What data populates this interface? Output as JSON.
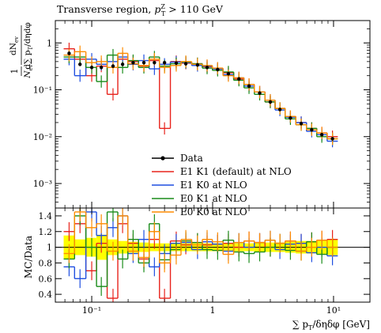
{
  "chart_data": [
    {
      "panel": "main",
      "type": "line",
      "title": "Transverse region, p_T^Z > 110 GeV",
      "title_parts": {
        "main": "Transverse region, ",
        "var": "p",
        "sub": "T",
        "sup": "Z",
        "rest": " > 110 GeV"
      },
      "ylabel": "1/N_ev dN_ev/d∑p_T/dηdφ",
      "ylabel_parts": {
        "one": "1",
        "nev_top": "dN",
        "nev_sub": "ev",
        "den_left": "N",
        "den_left_sub": "ev",
        "den_right": "d∑ p",
        "den_right_sub": "T",
        "den_tail": "/dηdφ"
      },
      "x_scale": "log",
      "y_scale": "log",
      "xlim": [
        0.05,
        20
      ],
      "ylim": [
        0.0003,
        3
      ],
      "y_tick_labels": [
        "10⁻³",
        "10⁻²",
        "10⁻¹",
        "1"
      ],
      "y_tick_values": [
        0.001,
        0.01,
        0.1,
        1
      ],
      "legend_position": "center",
      "legend": [
        {
          "label": "Data",
          "color": "#000000",
          "marker": "dot"
        },
        {
          "label": "E1 K1 (default) at NLO",
          "color": "#e8231c"
        },
        {
          "label": "E1 K0 at NLO",
          "color": "#1f4fe0"
        },
        {
          "label": "E0 K1 at NLO",
          "color": "#1a8c1a"
        },
        {
          "label": "E0 K0 at NLO",
          "color": "#ff8c00"
        }
      ],
      "series": [
        {
          "name": "Data",
          "color": "#000000",
          "x": [
            0.065,
            0.08,
            0.1,
            0.12,
            0.15,
            0.18,
            0.22,
            0.27,
            0.33,
            0.4,
            0.5,
            0.6,
            0.75,
            0.9,
            1.1,
            1.35,
            1.65,
            2.0,
            2.45,
            3.0,
            3.6,
            4.4,
            5.4,
            6.6,
            8.0,
            9.8
          ],
          "y": [
            0.6,
            0.35,
            0.3,
            0.3,
            0.32,
            0.35,
            0.38,
            0.38,
            0.38,
            0.38,
            0.37,
            0.36,
            0.34,
            0.3,
            0.27,
            0.22,
            0.17,
            0.12,
            0.085,
            0.055,
            0.038,
            0.025,
            0.019,
            0.014,
            0.011,
            0.009
          ]
        },
        {
          "name": "E1 K1 (default) at NLO",
          "color": "#e8231c",
          "x": [
            0.065,
            0.08,
            0.1,
            0.12,
            0.15,
            0.18,
            0.22,
            0.27,
            0.33,
            0.4,
            0.5,
            0.6,
            0.75,
            0.9,
            1.1,
            1.35,
            1.65,
            2.0,
            2.45,
            3.0,
            3.6,
            4.4,
            5.4,
            6.6,
            8.0,
            9.8
          ],
          "y": [
            0.75,
            0.45,
            0.2,
            0.32,
            0.08,
            0.45,
            0.4,
            0.32,
            0.42,
            0.015,
            0.4,
            0.37,
            0.36,
            0.31,
            0.28,
            0.23,
            0.17,
            0.13,
            0.09,
            0.055,
            0.04,
            0.027,
            0.02,
            0.015,
            0.012,
            0.01
          ]
        },
        {
          "name": "E1 K0 at NLO",
          "color": "#1f4fe0",
          "x": [
            0.065,
            0.08,
            0.1,
            0.12,
            0.15,
            0.18,
            0.22,
            0.27,
            0.33,
            0.4,
            0.5,
            0.6,
            0.75,
            0.9,
            1.1,
            1.35,
            1.65,
            2.0,
            2.45,
            3.0,
            3.6,
            4.4,
            5.4,
            6.6,
            8.0,
            9.8
          ],
          "y": [
            0.45,
            0.2,
            0.45,
            0.35,
            0.4,
            0.5,
            0.35,
            0.42,
            0.28,
            0.35,
            0.39,
            0.38,
            0.33,
            0.32,
            0.28,
            0.21,
            0.18,
            0.12,
            0.09,
            0.06,
            0.037,
            0.026,
            0.02,
            0.013,
            0.011,
            0.008
          ]
        },
        {
          "name": "E0 K1 at NLO",
          "color": "#1a8c1a",
          "x": [
            0.065,
            0.08,
            0.1,
            0.12,
            0.15,
            0.18,
            0.22,
            0.27,
            0.33,
            0.4,
            0.5,
            0.6,
            0.75,
            0.9,
            1.1,
            1.35,
            1.65,
            2.0,
            2.45,
            3.0,
            3.6,
            4.4,
            5.4,
            6.6,
            8.0,
            9.8
          ],
          "y": [
            0.5,
            0.5,
            0.3,
            0.15,
            0.55,
            0.3,
            0.42,
            0.3,
            0.5,
            0.32,
            0.36,
            0.39,
            0.36,
            0.29,
            0.26,
            0.24,
            0.16,
            0.11,
            0.08,
            0.055,
            0.04,
            0.024,
            0.018,
            0.015,
            0.01,
            0.009
          ]
        },
        {
          "name": "E0 K0 at NLO",
          "color": "#ff8c00",
          "x": [
            0.065,
            0.08,
            0.1,
            0.12,
            0.15,
            0.18,
            0.22,
            0.27,
            0.33,
            0.4,
            0.5,
            0.6,
            0.75,
            0.9,
            1.1,
            1.35,
            1.65,
            2.0,
            2.45,
            3.0,
            3.6,
            4.4,
            5.4,
            6.6,
            8.0,
            9.8
          ],
          "y": [
            0.55,
            0.65,
            0.38,
            0.4,
            0.3,
            0.6,
            0.36,
            0.33,
            0.45,
            0.3,
            0.33,
            0.4,
            0.35,
            0.33,
            0.29,
            0.2,
            0.18,
            0.13,
            0.09,
            0.06,
            0.04,
            0.027,
            0.018,
            0.014,
            0.012,
            0.009
          ]
        }
      ]
    },
    {
      "panel": "ratio",
      "type": "line",
      "ylabel": "MC/Data",
      "xlabel": "∑p_T/δηδφ [GeV]",
      "xlabel_parts": {
        "pre": "∑ p",
        "sub": "T",
        "post": "/δηδφ [GeV]"
      },
      "x_scale": "log",
      "xlim": [
        0.05,
        20
      ],
      "ylim": [
        0.3,
        1.5
      ],
      "y_tick_labels": [
        "0.4",
        "0.6",
        "0.8",
        "1",
        "1.2",
        "1.4"
      ],
      "y_tick_values": [
        0.4,
        0.6,
        0.8,
        1.0,
        1.2,
        1.4
      ],
      "x_tick_labels": [
        "10⁻¹",
        "1",
        "10¹"
      ],
      "x_tick_values": [
        0.1,
        1,
        10
      ],
      "band_color": "#ffff00",
      "band_x": [
        0.065,
        0.08,
        0.1,
        0.12,
        0.15,
        0.18,
        0.22,
        0.27,
        0.33,
        0.4,
        0.5,
        0.6,
        0.75,
        0.9,
        1.1,
        1.35,
        1.65,
        2.0,
        2.45,
        3.0,
        3.6,
        4.4,
        5.4,
        6.6,
        8.0,
        9.8
      ],
      "band_halfwidth": [
        0.15,
        0.1,
        0.12,
        0.16,
        0.1,
        0.08,
        0.07,
        0.06,
        0.05,
        0.05,
        0.05,
        0.05,
        0.05,
        0.05,
        0.05,
        0.05,
        0.05,
        0.05,
        0.06,
        0.06,
        0.06,
        0.07,
        0.08,
        0.08,
        0.09,
        0.1
      ],
      "series": [
        {
          "name": "E1 K1 (default) at NLO",
          "color": "#e8231c",
          "x": [
            0.065,
            0.08,
            0.1,
            0.12,
            0.15,
            0.18,
            0.22,
            0.27,
            0.33,
            0.4,
            0.5,
            0.6,
            0.75,
            0.9,
            1.1,
            1.35,
            1.65,
            2.0,
            2.45,
            3.0,
            3.6,
            4.4,
            5.4,
            6.6,
            8.0,
            9.8
          ],
          "y": [
            1.2,
            1.3,
            0.7,
            1.05,
            0.35,
            1.3,
            1.05,
            0.85,
            1.1,
            0.35,
            1.08,
            1.03,
            1.06,
            1.03,
            1.04,
            1.05,
            1.0,
            1.08,
            1.06,
            1.0,
            1.05,
            1.08,
            1.05,
            1.07,
            1.09,
            1.1
          ]
        },
        {
          "name": "E1 K0 at NLO",
          "color": "#1f4fe0",
          "x": [
            0.065,
            0.08,
            0.1,
            0.12,
            0.15,
            0.18,
            0.22,
            0.27,
            0.33,
            0.4,
            0.5,
            0.6,
            0.75,
            0.9,
            1.1,
            1.35,
            1.65,
            2.0,
            2.45,
            3.0,
            3.6,
            4.4,
            5.4,
            6.6,
            8.0,
            9.8
          ],
          "y": [
            0.75,
            0.6,
            1.45,
            1.15,
            1.25,
            1.4,
            0.92,
            1.1,
            0.75,
            0.92,
            1.05,
            1.06,
            0.97,
            1.07,
            1.04,
            0.95,
            1.06,
            1.0,
            1.06,
            1.09,
            0.97,
            1.04,
            1.05,
            0.93,
            1.0,
            0.89
          ]
        },
        {
          "name": "E0 K1 at NLO",
          "color": "#1a8c1a",
          "x": [
            0.065,
            0.08,
            0.1,
            0.12,
            0.15,
            0.18,
            0.22,
            0.27,
            0.33,
            0.4,
            0.5,
            0.6,
            0.75,
            0.9,
            1.1,
            1.35,
            1.65,
            2.0,
            2.45,
            3.0,
            3.6,
            4.4,
            5.4,
            6.6,
            8.0,
            9.8
          ],
          "y": [
            0.85,
            1.4,
            1.0,
            0.5,
            1.45,
            0.85,
            1.1,
            0.8,
            1.3,
            0.84,
            0.97,
            1.08,
            1.06,
            0.97,
            0.96,
            1.09,
            0.94,
            0.92,
            0.94,
            1.0,
            1.05,
            0.96,
            0.95,
            1.07,
            0.91,
            1.0
          ]
        },
        {
          "name": "E0 K0 at NLO",
          "color": "#ff8c00",
          "x": [
            0.065,
            0.08,
            0.1,
            0.12,
            0.15,
            0.18,
            0.22,
            0.27,
            0.33,
            0.4,
            0.5,
            0.6,
            0.75,
            0.9,
            1.1,
            1.35,
            1.65,
            2.0,
            2.45,
            3.0,
            3.6,
            4.4,
            5.4,
            6.6,
            8.0,
            9.8
          ],
          "y": [
            0.92,
            1.45,
            1.25,
            1.3,
            0.95,
            1.4,
            0.95,
            0.87,
            1.2,
            0.8,
            0.9,
            1.1,
            1.03,
            1.1,
            1.07,
            0.91,
            1.06,
            1.08,
            1.06,
            1.09,
            1.05,
            1.08,
            0.95,
            1.0,
            1.09,
            1.0
          ]
        }
      ]
    }
  ]
}
